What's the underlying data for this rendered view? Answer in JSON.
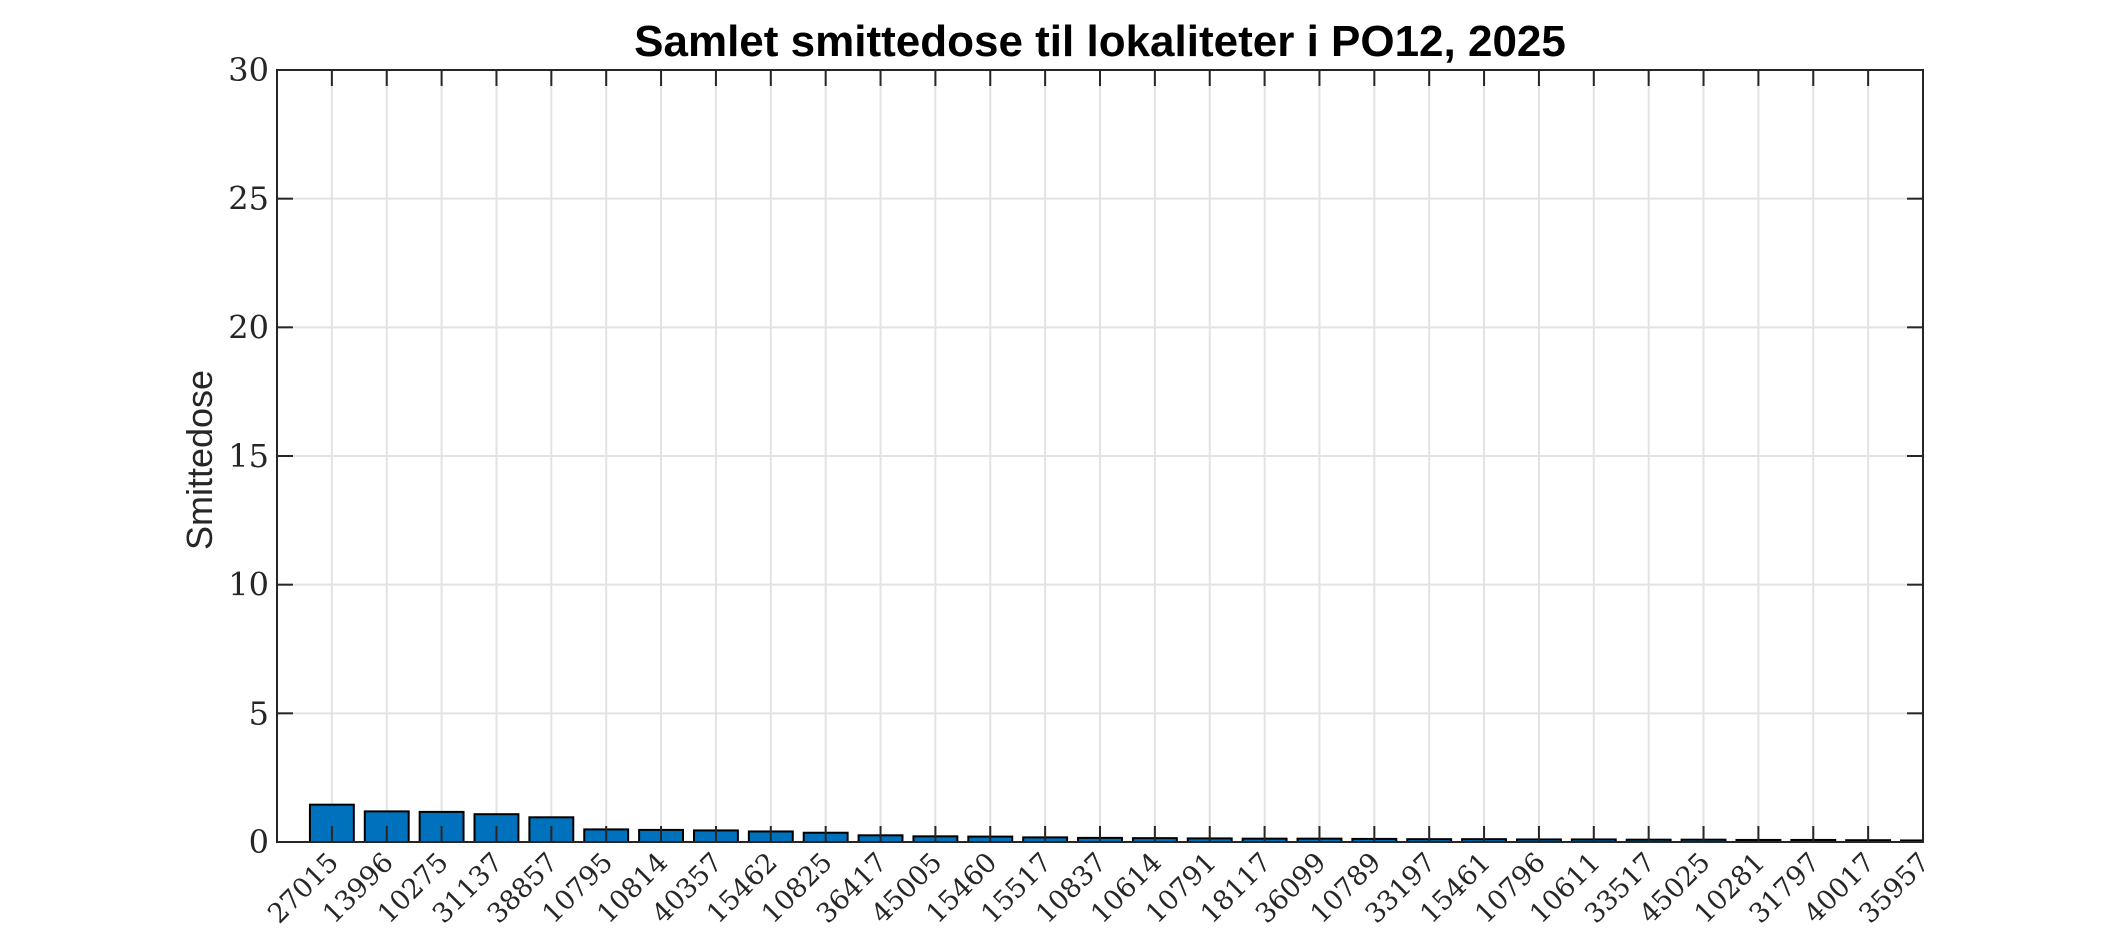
{
  "chart_data": {
    "type": "bar",
    "title": "Samlet smittedose til lokaliteter i PO12, 2025",
    "xlabel": "",
    "ylabel": "Smittedose",
    "ylim": [
      0,
      30
    ],
    "xlim": [
      0,
      30
    ],
    "yticks": [
      0,
      5,
      10,
      15,
      20,
      25,
      30
    ],
    "grid": true,
    "legend": null,
    "bar_color": "#0072BD",
    "bar_edge_color": "#000000",
    "categories": [
      "27015",
      "13996",
      "10275",
      "31137",
      "38857",
      "10795",
      "10814",
      "40357",
      "15462",
      "10825",
      "36417",
      "45005",
      "15460",
      "15517",
      "10837",
      "10614",
      "10791",
      "18117",
      "36099",
      "10789",
      "33197",
      "15461",
      "10796",
      "10611",
      "33517",
      "45025",
      "10281",
      "31797",
      "40017",
      "35957"
    ],
    "values": [
      1.45,
      1.19,
      1.17,
      1.08,
      0.96,
      0.49,
      0.47,
      0.45,
      0.41,
      0.36,
      0.26,
      0.22,
      0.21,
      0.18,
      0.16,
      0.15,
      0.14,
      0.13,
      0.13,
      0.12,
      0.11,
      0.11,
      0.1,
      0.1,
      0.09,
      0.09,
      0.08,
      0.08,
      0.07,
      0.06
    ]
  }
}
